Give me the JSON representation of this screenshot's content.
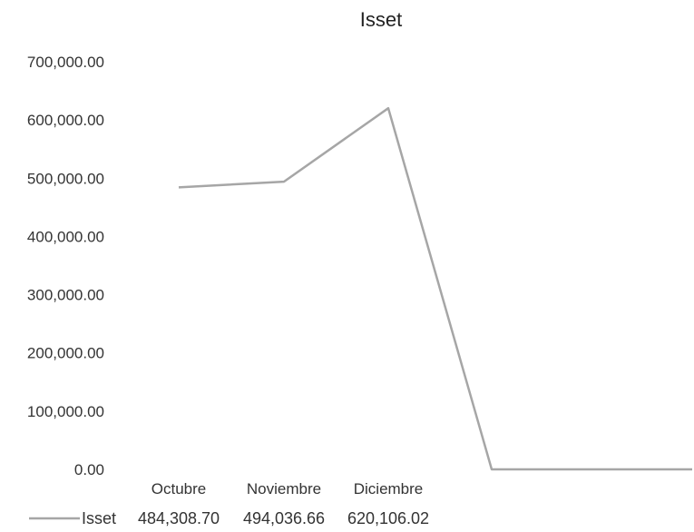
{
  "chart_data": {
    "type": "line",
    "title": "Isset",
    "xlabel": "",
    "ylabel": "",
    "ylim": [
      0,
      700000
    ],
    "y_ticks": [
      "700,000.00",
      "600,000.00",
      "500,000.00",
      "400,000.00",
      "300,000.00",
      "200,000.00",
      "100,000.00",
      "0.00"
    ],
    "y_tick_values": [
      700000,
      600000,
      500000,
      400000,
      300000,
      200000,
      100000,
      0
    ],
    "categories": [
      "Octubre",
      "Noviembre",
      "Diciembre",
      "",
      ""
    ],
    "grid": false,
    "legend_position": "bottom (data table)",
    "series": [
      {
        "name": "Isset",
        "color": "#a6a6a6",
        "values": [
          484308.7,
          494036.66,
          620106.02,
          0,
          0
        ]
      }
    ],
    "data_table": {
      "row_label": "Isset",
      "cells": [
        "484,308.70",
        "494,036.66",
        "620,106.02",
        "",
        ""
      ]
    }
  }
}
